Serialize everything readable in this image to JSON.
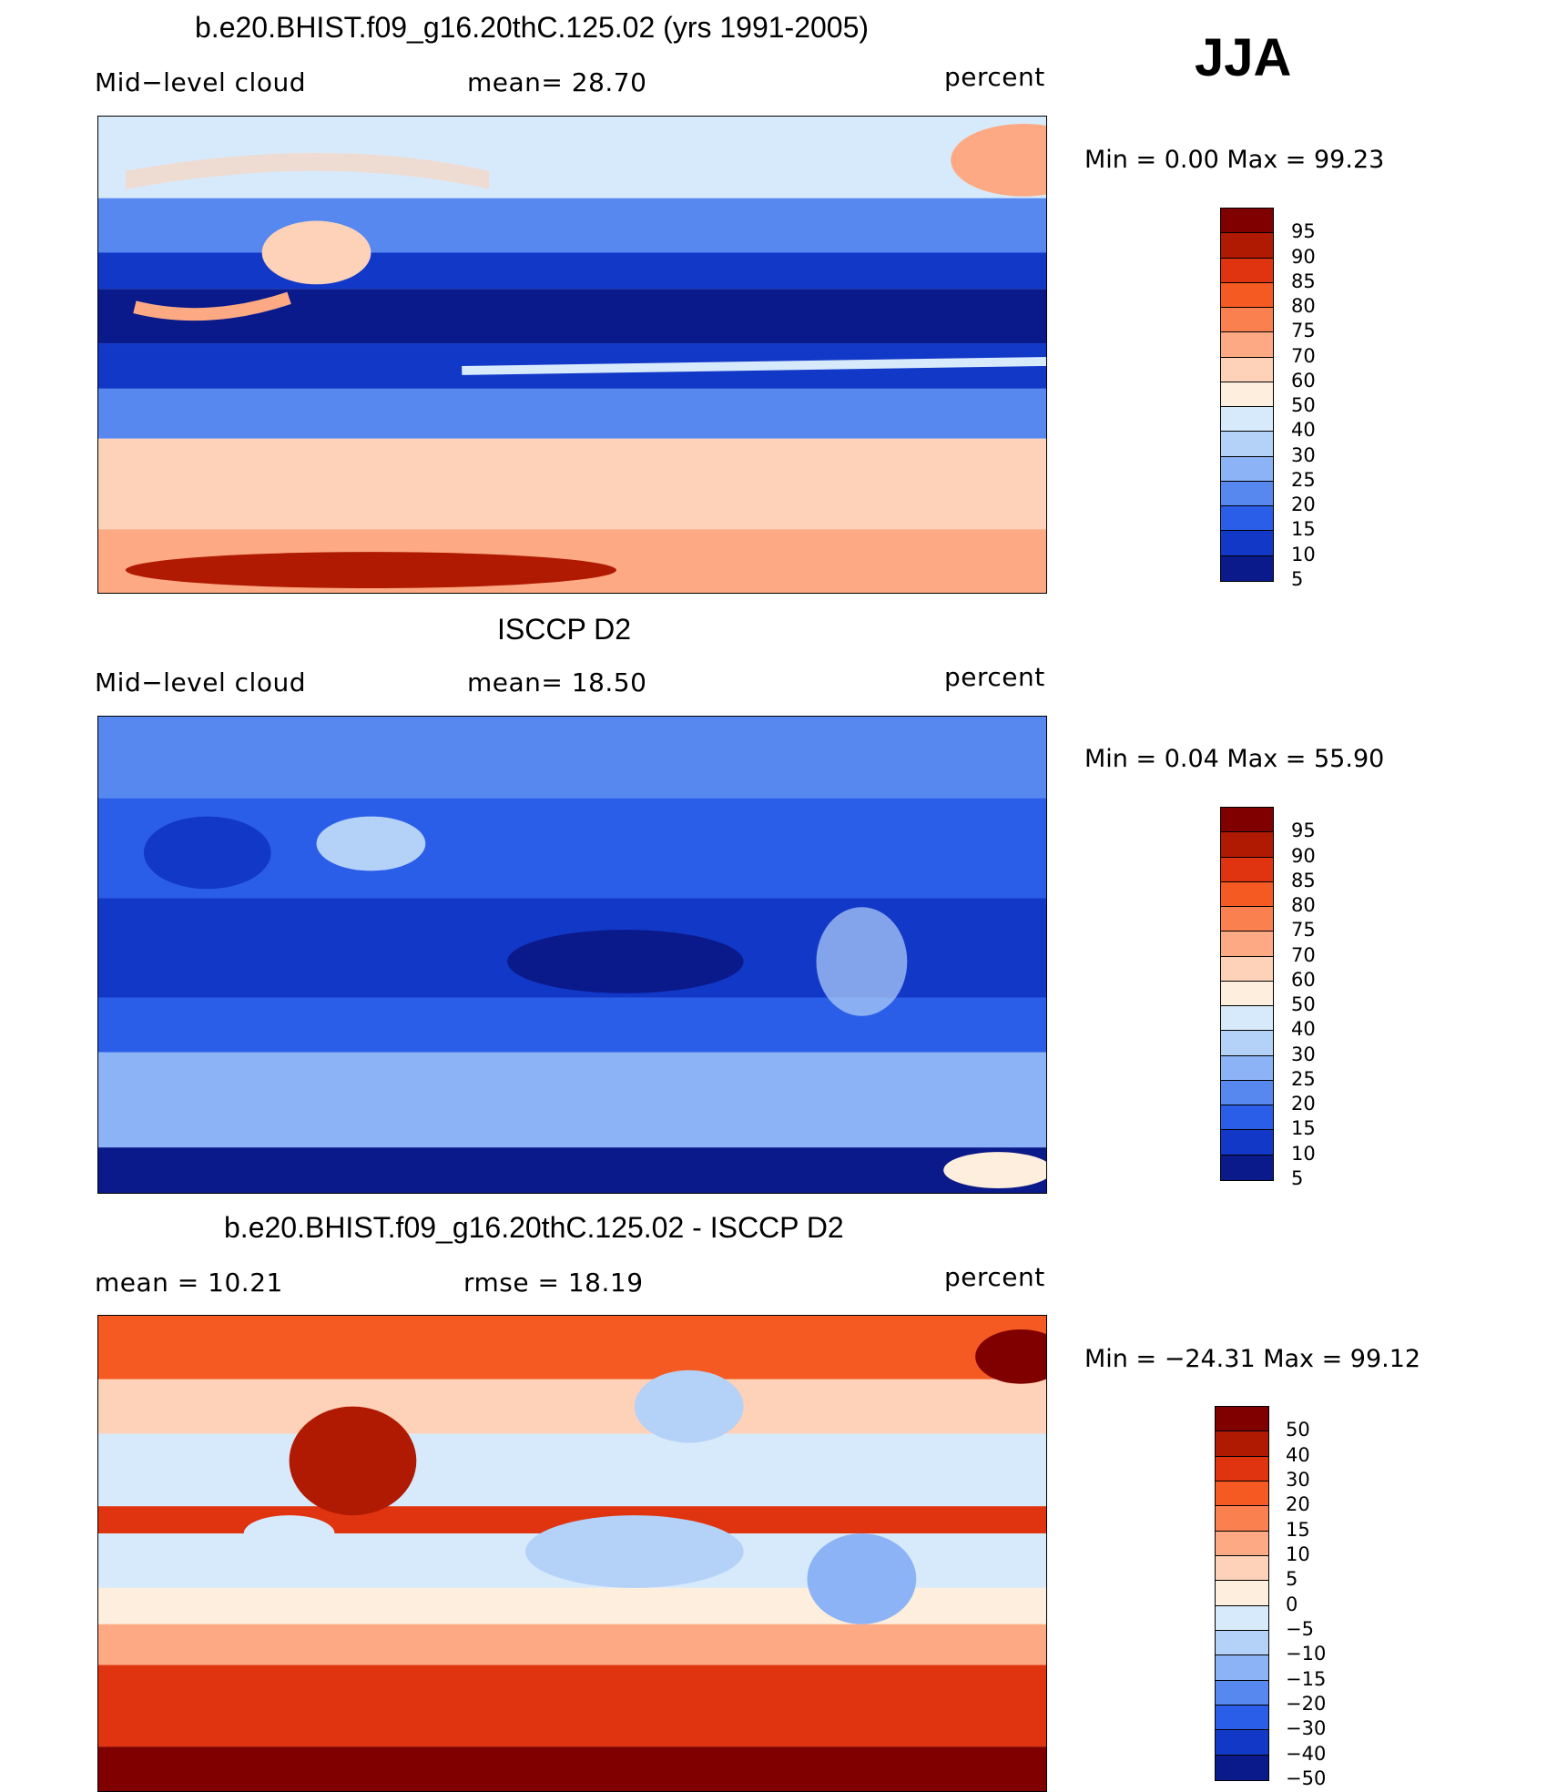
{
  "season": "JJA",
  "panels": [
    {
      "title": "b.e20.BHIST.f09_g16.20thC.125.02 (yrs 1991-2005)",
      "left_label": "Mid−level cloud",
      "center_label": "mean=   28.70",
      "units": "percent",
      "minmax": "Min =    0.00  Max =    99.23",
      "colorbar": {
        "labels": [
          "95",
          "90",
          "85",
          "80",
          "75",
          "70",
          "60",
          "50",
          "40",
          "30",
          "25",
          "20",
          "15",
          "10",
          "5"
        ],
        "colors": [
          "#800000",
          "#b01a02",
          "#e03410",
          "#f55a22",
          "#fb8050",
          "#fdaa84",
          "#fdd2b8",
          "#fdeedd",
          "#d7eafc",
          "#b4d1f8",
          "#8cb3f5",
          "#5688f0",
          "#2a5ee8",
          "#1238c8",
          "#0a1a8a"
        ]
      },
      "map_palette": {
        "ocean_base": "#2a5ee8",
        "accent": "#fdd2b8"
      }
    },
    {
      "title": "ISCCP D2",
      "left_label": "Mid−level cloud",
      "center_label": "mean=   18.50",
      "units": "percent",
      "minmax": "Min =    0.04  Max =    55.90",
      "colorbar": {
        "labels": [
          "95",
          "90",
          "85",
          "80",
          "75",
          "70",
          "60",
          "50",
          "40",
          "30",
          "25",
          "20",
          "15",
          "10",
          "5"
        ],
        "colors": [
          "#800000",
          "#b01a02",
          "#e03410",
          "#f55a22",
          "#fb8050",
          "#fdaa84",
          "#fdd2b8",
          "#fdeedd",
          "#d7eafc",
          "#b4d1f8",
          "#8cb3f5",
          "#5688f0",
          "#2a5ee8",
          "#1238c8",
          "#0a1a8a"
        ]
      },
      "map_palette": {
        "ocean_base": "#2a5ee8",
        "accent": "#b4d1f8"
      }
    },
    {
      "title": "b.e20.BHIST.f09_g16.20thC.125.02 - ISCCP D2",
      "left_label": "mean =    10.21",
      "center_label": "rmse =    18.19",
      "units": "percent",
      "minmax": "Min = −24.31  Max =    99.12",
      "colorbar": {
        "labels": [
          "50",
          "40",
          "30",
          "20",
          "15",
          "10",
          "5",
          "0",
          "−5",
          "−10",
          "−15",
          "−20",
          "−30",
          "−40",
          "−50"
        ],
        "colors": [
          "#800000",
          "#b01a02",
          "#e03410",
          "#f55a22",
          "#fb8050",
          "#fdaa84",
          "#fdd2b8",
          "#fdeedd",
          "#d7eafc",
          "#b4d1f8",
          "#8cb3f5",
          "#5688f0",
          "#2a5ee8",
          "#1238c8",
          "#0a1a8a"
        ]
      },
      "map_palette": {
        "ocean_base": "#fdd2b8",
        "accent": "#e03410"
      }
    }
  ]
}
